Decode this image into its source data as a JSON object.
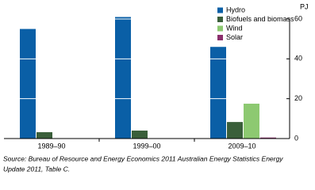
{
  "chart_data": {
    "type": "bar",
    "y_label": "PJ",
    "categories": [
      "1989–90",
      "1999–00",
      "2009–10"
    ],
    "series": [
      {
        "name": "Hydro",
        "color": "#0a5fa6",
        "values": [
          55,
          61,
          46
        ]
      },
      {
        "name": "Biofuels and biomass",
        "color": "#3a5f3a",
        "values": [
          3.2,
          4,
          8.3
        ]
      },
      {
        "name": "Wind",
        "color": "#8dc971",
        "values": [
          0,
          0,
          17.5
        ]
      },
      {
        "name": "Solar",
        "color": "#8b2f6c",
        "values": [
          0,
          0,
          0.5
        ]
      }
    ],
    "ylim": [
      0,
      60
    ],
    "yticks": [
      0,
      20,
      40,
      60
    ],
    "grid": true,
    "legend": "top-right",
    "source": [
      "Source: Bureau of Resource and Energy Economics 2011 Australian Energy Statistics Energy",
      "Update 2011, Table C."
    ]
  }
}
